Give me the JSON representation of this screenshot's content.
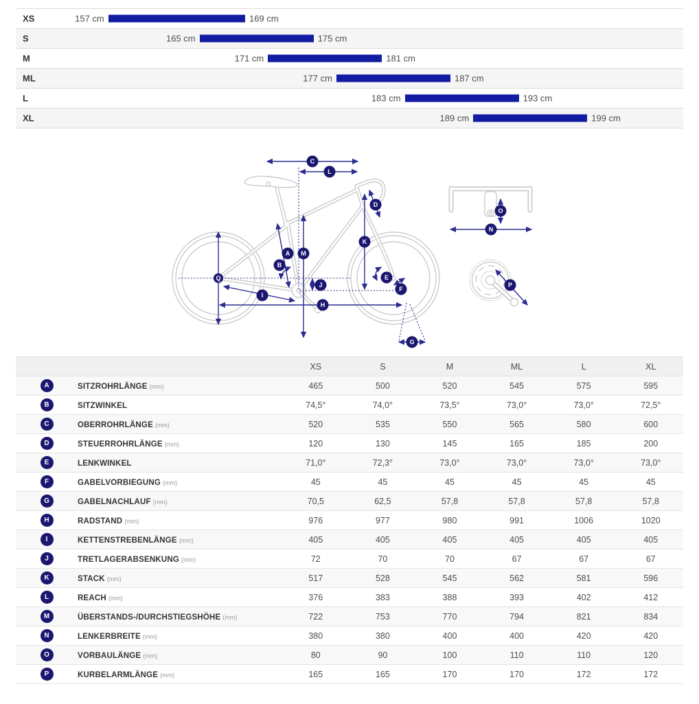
{
  "colors": {
    "bar_blue": "#121CA3",
    "badge_navy": "#1B1770",
    "arrow_navy": "#2B2B90",
    "bike_gray": "#CBCBCB"
  },
  "diagram": {
    "markers": [
      {
        "letter": "A"
      },
      {
        "letter": "B"
      },
      {
        "letter": "C"
      },
      {
        "letter": "D"
      },
      {
        "letter": "E"
      },
      {
        "letter": "F"
      },
      {
        "letter": "G"
      },
      {
        "letter": "H"
      },
      {
        "letter": "I"
      },
      {
        "letter": "J"
      },
      {
        "letter": "K"
      },
      {
        "letter": "L"
      },
      {
        "letter": "M"
      },
      {
        "letter": "N"
      },
      {
        "letter": "O"
      },
      {
        "letter": "P"
      },
      {
        "letter": "Q"
      }
    ]
  },
  "chart_data": [
    {
      "type": "bar",
      "orientation": "horizontal-range",
      "unit": "cm",
      "bars": [
        {
          "size": "XS",
          "min": 157,
          "max": 169,
          "min_label": "157 cm",
          "max_label": "169 cm"
        },
        {
          "size": "S",
          "min": 165,
          "max": 175,
          "min_label": "165 cm",
          "max_label": "175 cm"
        },
        {
          "size": "M",
          "min": 171,
          "max": 181,
          "min_label": "171 cm",
          "max_label": "181 cm"
        },
        {
          "size": "ML",
          "min": 177,
          "max": 187,
          "min_label": "177 cm",
          "max_label": "187 cm"
        },
        {
          "size": "L",
          "min": 183,
          "max": 193,
          "min_label": "183 cm",
          "max_label": "193 cm"
        },
        {
          "size": "XL",
          "min": 189,
          "max": 199,
          "min_label": "189 cm",
          "max_label": "199 cm"
        }
      ],
      "axis": {
        "min": 147.5,
        "max": 208.8,
        "gridlines": false
      }
    },
    {
      "type": "table",
      "columns": [
        "XS",
        "S",
        "M",
        "ML",
        "L",
        "XL"
      ],
      "rows": [
        {
          "marker": "A",
          "label": "SITZROHRLÄNGE",
          "unit": "(mm)",
          "values": [
            "465",
            "500",
            "520",
            "545",
            "575",
            "595"
          ]
        },
        {
          "marker": "B",
          "label": "SITZWINKEL",
          "unit": "",
          "values": [
            "74,5°",
            "74,0°",
            "73,5°",
            "73,0°",
            "73,0°",
            "72,5°"
          ]
        },
        {
          "marker": "C",
          "label": "OBERROHRLÄNGE",
          "unit": "(mm)",
          "values": [
            "520",
            "535",
            "550",
            "565",
            "580",
            "600"
          ]
        },
        {
          "marker": "D",
          "label": "STEUERROHRLÄNGE",
          "unit": "(mm)",
          "values": [
            "120",
            "130",
            "145",
            "165",
            "185",
            "200"
          ]
        },
        {
          "marker": "E",
          "label": "LENKWINKEL",
          "unit": "",
          "values": [
            "71,0°",
            "72,3°",
            "73,0°",
            "73,0°",
            "73,0°",
            "73,0°"
          ]
        },
        {
          "marker": "F",
          "label": "GABELVORBIEGUNG",
          "unit": "(mm)",
          "values": [
            "45",
            "45",
            "45",
            "45",
            "45",
            "45"
          ]
        },
        {
          "marker": "G",
          "label": "GABELNACHLAUF",
          "unit": "(mm)",
          "values": [
            "70,5",
            "62,5",
            "57,8",
            "57,8",
            "57,8",
            "57,8"
          ]
        },
        {
          "marker": "H",
          "label": "RADSTAND",
          "unit": "(mm)",
          "values": [
            "976",
            "977",
            "980",
            "991",
            "1006",
            "1020"
          ]
        },
        {
          "marker": "I",
          "label": "KETTENSTREBENLÄNGE",
          "unit": "(mm)",
          "values": [
            "405",
            "405",
            "405",
            "405",
            "405",
            "405"
          ]
        },
        {
          "marker": "J",
          "label": "TRETLAGERABSENKUNG",
          "unit": "(mm)",
          "values": [
            "72",
            "70",
            "70",
            "67",
            "67",
            "67"
          ]
        },
        {
          "marker": "K",
          "label": "STACK",
          "unit": "(mm)",
          "values": [
            "517",
            "528",
            "545",
            "562",
            "581",
            "596"
          ]
        },
        {
          "marker": "L",
          "label": "REACH",
          "unit": "(mm)",
          "values": [
            "376",
            "383",
            "388",
            "393",
            "402",
            "412"
          ]
        },
        {
          "marker": "M",
          "label": "ÜBERSTANDS-/DURCHSTIEGSHÖHE",
          "unit": "(mm)",
          "values": [
            "722",
            "753",
            "770",
            "794",
            "821",
            "834"
          ]
        },
        {
          "marker": "N",
          "label": "LENKERBREITE",
          "unit": "(mm)",
          "values": [
            "380",
            "380",
            "400",
            "400",
            "420",
            "420"
          ]
        },
        {
          "marker": "O",
          "label": "VORBAULÄNGE",
          "unit": "(mm)",
          "values": [
            "80",
            "90",
            "100",
            "110",
            "110",
            "120"
          ]
        },
        {
          "marker": "P",
          "label": "KURBELARMLÄNGE",
          "unit": "(mm)",
          "values": [
            "165",
            "165",
            "170",
            "170",
            "172",
            "172"
          ]
        }
      ]
    }
  ]
}
